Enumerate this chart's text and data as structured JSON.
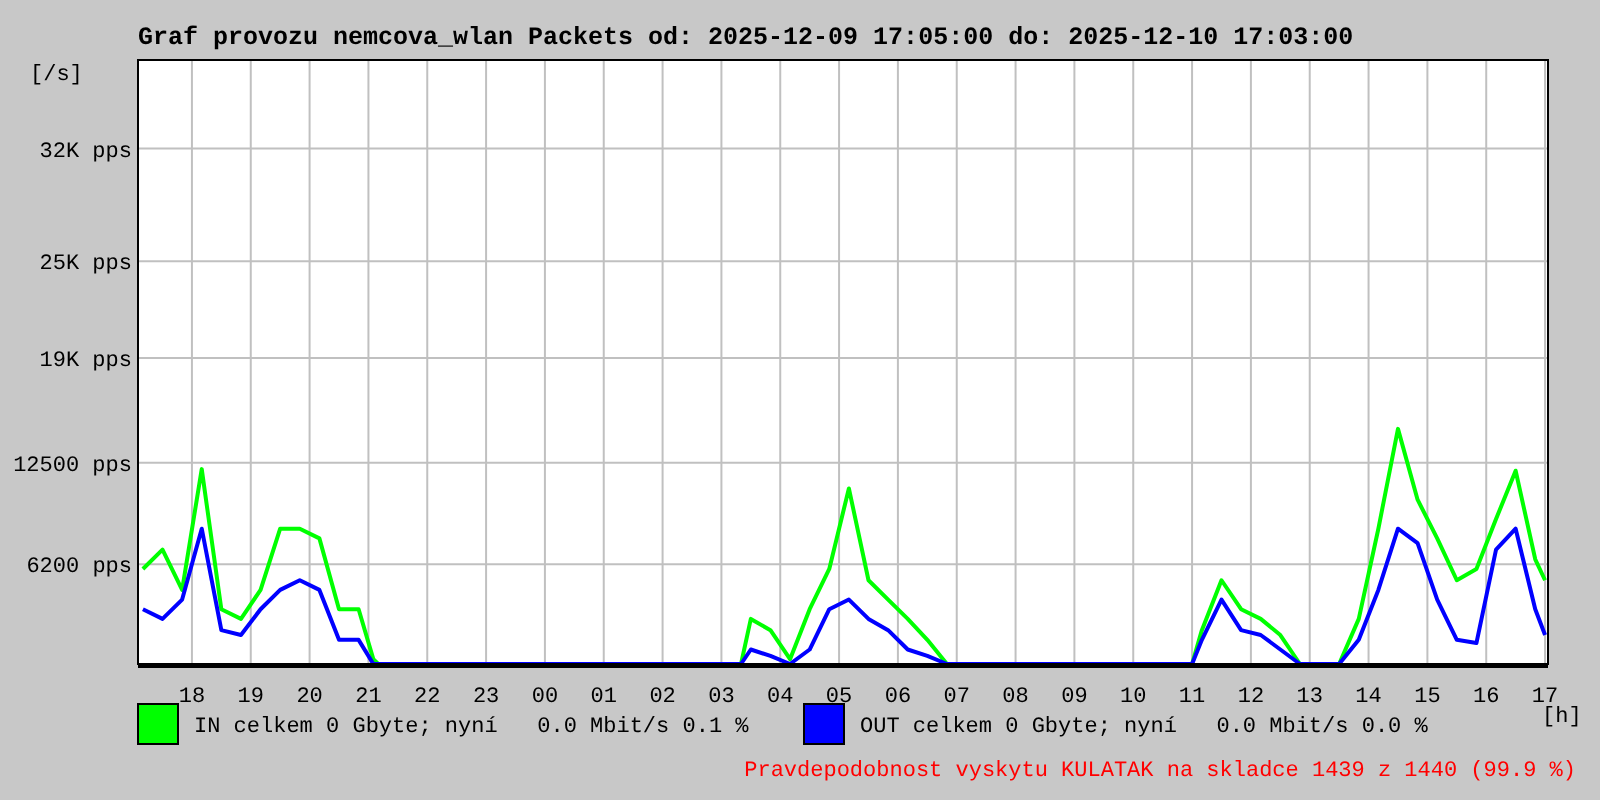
{
  "chart_data": {
    "type": "line",
    "title": "Graf provozu nemcova_wlan Packets od: 2025-12-09 17:05:00 do: 2025-12-10 17:03:00",
    "ylabel": "[/s]",
    "xlabel": "[h]",
    "x": [
      "2025-12-09T17:10",
      "2025-12-09T17:30",
      "2025-12-09T17:50",
      "2025-12-09T18:10",
      "2025-12-09T18:30",
      "2025-12-09T18:50",
      "2025-12-09T19:10",
      "2025-12-09T19:30",
      "2025-12-09T19:50",
      "2025-12-09T20:10",
      "2025-12-09T20:30",
      "2025-12-09T20:50",
      "2025-12-09T21:05",
      "2025-12-09T21:10",
      "2025-12-09T22:00",
      "2025-12-09T23:00",
      "2025-12-10T00:00",
      "2025-12-10T01:00",
      "2025-12-10T02:00",
      "2025-12-10T03:00",
      "2025-12-10T03:20",
      "2025-12-10T03:30",
      "2025-12-10T03:50",
      "2025-12-10T04:10",
      "2025-12-10T04:30",
      "2025-12-10T04:50",
      "2025-12-10T05:10",
      "2025-12-10T05:30",
      "2025-12-10T05:50",
      "2025-12-10T06:10",
      "2025-12-10T06:30",
      "2025-12-10T06:50",
      "2025-12-10T07:00",
      "2025-12-10T08:00",
      "2025-12-10T09:00",
      "2025-12-10T10:00",
      "2025-12-10T11:00",
      "2025-12-10T11:10",
      "2025-12-10T11:30",
      "2025-12-10T11:50",
      "2025-12-10T12:10",
      "2025-12-10T12:30",
      "2025-12-10T12:50",
      "2025-12-10T13:30",
      "2025-12-10T13:50",
      "2025-12-10T14:10",
      "2025-12-10T14:30",
      "2025-12-10T14:50",
      "2025-12-10T15:10",
      "2025-12-10T15:30",
      "2025-12-10T15:50",
      "2025-12-10T16:10",
      "2025-12-10T16:30",
      "2025-12-10T16:50",
      "2025-12-10T17:00"
    ],
    "series": [
      {
        "name": "IN celkem 0 Gbyte; nyní   0.0 Mbit/s 0.1 %",
        "color": "#00ff00",
        "values": [
          5900,
          7100,
          4600,
          12100,
          3400,
          2800,
          4600,
          8400,
          8400,
          7800,
          3400,
          3400,
          300,
          0,
          0,
          0,
          0,
          0,
          0,
          0,
          0,
          2800,
          2100,
          300,
          3400,
          5900,
          10900,
          5200,
          4000,
          2800,
          1500,
          0,
          0,
          0,
          0,
          0,
          0,
          2100,
          5200,
          3400,
          2800,
          1800,
          0,
          0,
          2800,
          8400,
          14600,
          10200,
          7800,
          5200,
          5900,
          9000,
          12000,
          6500,
          5200
        ]
      },
      {
        "name": "OUT celkem 0 Gbyte; nyní   0.0 Mbit/s 0.0 %",
        "color": "#0000ff",
        "values": [
          3400,
          2800,
          4000,
          8400,
          2100,
          1800,
          3400,
          4600,
          5200,
          4600,
          1500,
          1500,
          0,
          0,
          0,
          0,
          0,
          0,
          0,
          0,
          0,
          900,
          500,
          0,
          900,
          3400,
          4000,
          2800,
          2100,
          900,
          500,
          0,
          0,
          0,
          0,
          0,
          0,
          1500,
          4000,
          2100,
          1800,
          900,
          0,
          0,
          1500,
          4600,
          8400,
          7500,
          4000,
          1500,
          1300,
          7100,
          8400,
          3400,
          1800
        ]
      }
    ],
    "xlim": [
      "2025-12-09T17:05",
      "2025-12-10T17:03"
    ],
    "xticks": [
      {
        "value": "2025-12-09T18:00",
        "label": "18"
      },
      {
        "value": "2025-12-09T19:00",
        "label": "19"
      },
      {
        "value": "2025-12-09T20:00",
        "label": "20"
      },
      {
        "value": "2025-12-09T21:00",
        "label": "21"
      },
      {
        "value": "2025-12-09T22:00",
        "label": "22"
      },
      {
        "value": "2025-12-09T23:00",
        "label": "23"
      },
      {
        "value": "2025-12-10T00:00",
        "label": "00"
      },
      {
        "value": "2025-12-10T01:00",
        "label": "01"
      },
      {
        "value": "2025-12-10T02:00",
        "label": "02"
      },
      {
        "value": "2025-12-10T03:00",
        "label": "03"
      },
      {
        "value": "2025-12-10T04:00",
        "label": "04"
      },
      {
        "value": "2025-12-10T05:00",
        "label": "05"
      },
      {
        "value": "2025-12-10T06:00",
        "label": "06"
      },
      {
        "value": "2025-12-10T07:00",
        "label": "07"
      },
      {
        "value": "2025-12-10T08:00",
        "label": "08"
      },
      {
        "value": "2025-12-10T09:00",
        "label": "09"
      },
      {
        "value": "2025-12-10T10:00",
        "label": "10"
      },
      {
        "value": "2025-12-10T11:00",
        "label": "11"
      },
      {
        "value": "2025-12-10T12:00",
        "label": "12"
      },
      {
        "value": "2025-12-10T13:00",
        "label": "13"
      },
      {
        "value": "2025-12-10T14:00",
        "label": "14"
      },
      {
        "value": "2025-12-10T15:00",
        "label": "15"
      },
      {
        "value": "2025-12-10T16:00",
        "label": "16"
      },
      {
        "value": "2025-12-10T17:00",
        "label": "17"
      }
    ],
    "ylim": [
      0,
      37500
    ],
    "yticks": [
      {
        "value": 6200,
        "label": "6200 pps"
      },
      {
        "value": 12500,
        "label": "12500 pps"
      },
      {
        "value": 19000,
        "label": "19K pps"
      },
      {
        "value": 25000,
        "label": "25K pps"
      },
      {
        "value": 32000,
        "label": "32K pps"
      }
    ],
    "grid": true,
    "legend": "bottom",
    "marker": "none",
    "line_style": "solid",
    "annotations": [
      "Pravdepodobnost vyskytu KULATAK na skladce 1439 z 1440 (99.9 %)"
    ]
  }
}
